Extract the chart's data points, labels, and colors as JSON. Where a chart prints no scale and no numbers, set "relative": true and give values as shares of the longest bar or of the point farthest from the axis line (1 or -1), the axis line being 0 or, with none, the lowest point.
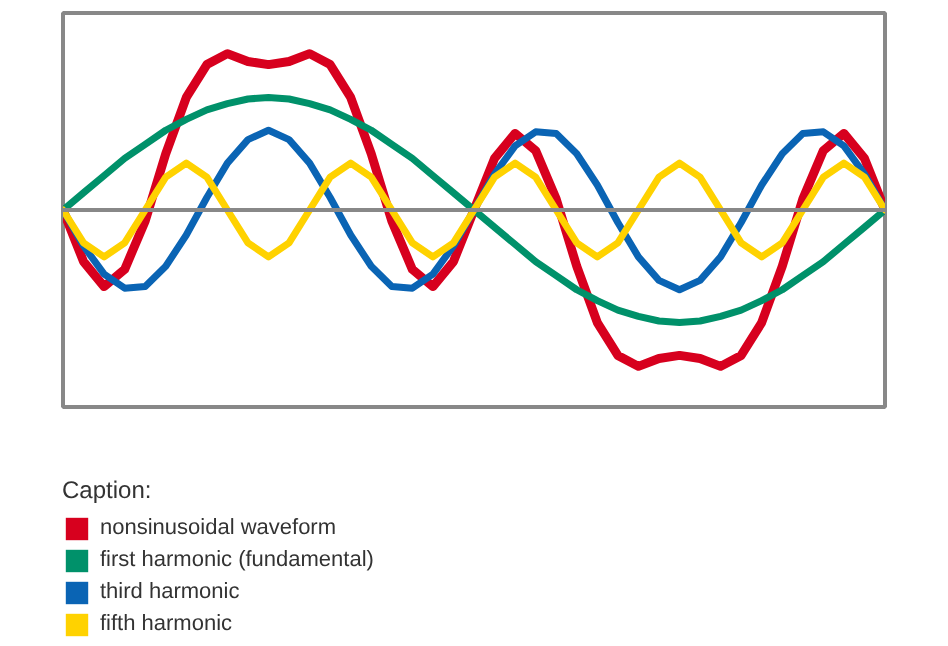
{
  "chart_data": {
    "type": "line",
    "relative": true,
    "legend_title": "Caption:",
    "legend": "bottom",
    "line_style": "solid",
    "categories": [
      null,
      null,
      null,
      null,
      null,
      null,
      null,
      null,
      null,
      null,
      null,
      null,
      null,
      null,
      null,
      null,
      null,
      null,
      null,
      null,
      null,
      null,
      null,
      null,
      null,
      null,
      null,
      null,
      null,
      null,
      null,
      null,
      null,
      null,
      null,
      null,
      null,
      null,
      null,
      null,
      null
    ],
    "series": [
      {
        "name": "nonsinusoidal waveform",
        "color": "#d7001e",
        "values": [
          0,
          -0.33,
          -0.49,
          -0.38,
          -0.07,
          0.36,
          0.72,
          0.93,
          1.0,
          0.95,
          0.93,
          0.95,
          1.0,
          0.93,
          0.72,
          0.36,
          -0.07,
          -0.38,
          -0.49,
          -0.33,
          0,
          0.33,
          0.49,
          0.38,
          0.07,
          -0.36,
          -0.72,
          -0.93,
          -1.0,
          -0.95,
          -0.93,
          -0.95,
          -1.0,
          -0.93,
          -0.72,
          -0.36,
          0.07,
          0.38,
          0.49,
          0.33,
          0
        ]
      },
      {
        "name": "first harmonic (fundamental)",
        "color": "#00916a",
        "values": [
          0,
          0.11,
          0.22,
          0.33,
          0.42,
          0.51,
          0.58,
          0.64,
          0.68,
          0.71,
          0.72,
          0.71,
          0.68,
          0.64,
          0.58,
          0.51,
          0.42,
          0.33,
          0.22,
          0.11,
          0,
          -0.11,
          -0.22,
          -0.33,
          -0.42,
          -0.51,
          -0.58,
          -0.64,
          -0.68,
          -0.71,
          -0.72,
          -0.71,
          -0.68,
          -0.64,
          -0.58,
          -0.51,
          -0.42,
          -0.33,
          -0.22,
          -0.11,
          0
        ]
      },
      {
        "name": "third harmonic",
        "color": "#0a64b4",
        "values": [
          0,
          -0.23,
          -0.41,
          -0.5,
          -0.49,
          -0.36,
          -0.16,
          0.08,
          0.3,
          0.45,
          0.51,
          0.45,
          0.3,
          0.08,
          -0.16,
          -0.36,
          -0.49,
          -0.5,
          -0.41,
          -0.23,
          0,
          0.23,
          0.41,
          0.5,
          0.49,
          0.36,
          0.16,
          -0.08,
          -0.3,
          -0.45,
          -0.51,
          -0.45,
          -0.3,
          -0.08,
          0.16,
          0.36,
          0.49,
          0.5,
          0.41,
          0.23,
          0
        ]
      },
      {
        "name": "fifth harmonic",
        "color": "#ffd200",
        "values": [
          0,
          -0.21,
          -0.3,
          -0.21,
          0,
          0.21,
          0.3,
          0.21,
          0,
          -0.21,
          -0.3,
          -0.21,
          0,
          0.21,
          0.3,
          0.21,
          0,
          -0.21,
          -0.3,
          -0.21,
          0,
          0.21,
          0.3,
          0.21,
          0,
          -0.21,
          -0.3,
          -0.21,
          0,
          0.21,
          0.3,
          0.21,
          0,
          -0.21,
          -0.3,
          -0.21,
          0,
          0.21,
          0.3,
          0.21,
          0
        ]
      }
    ]
  }
}
